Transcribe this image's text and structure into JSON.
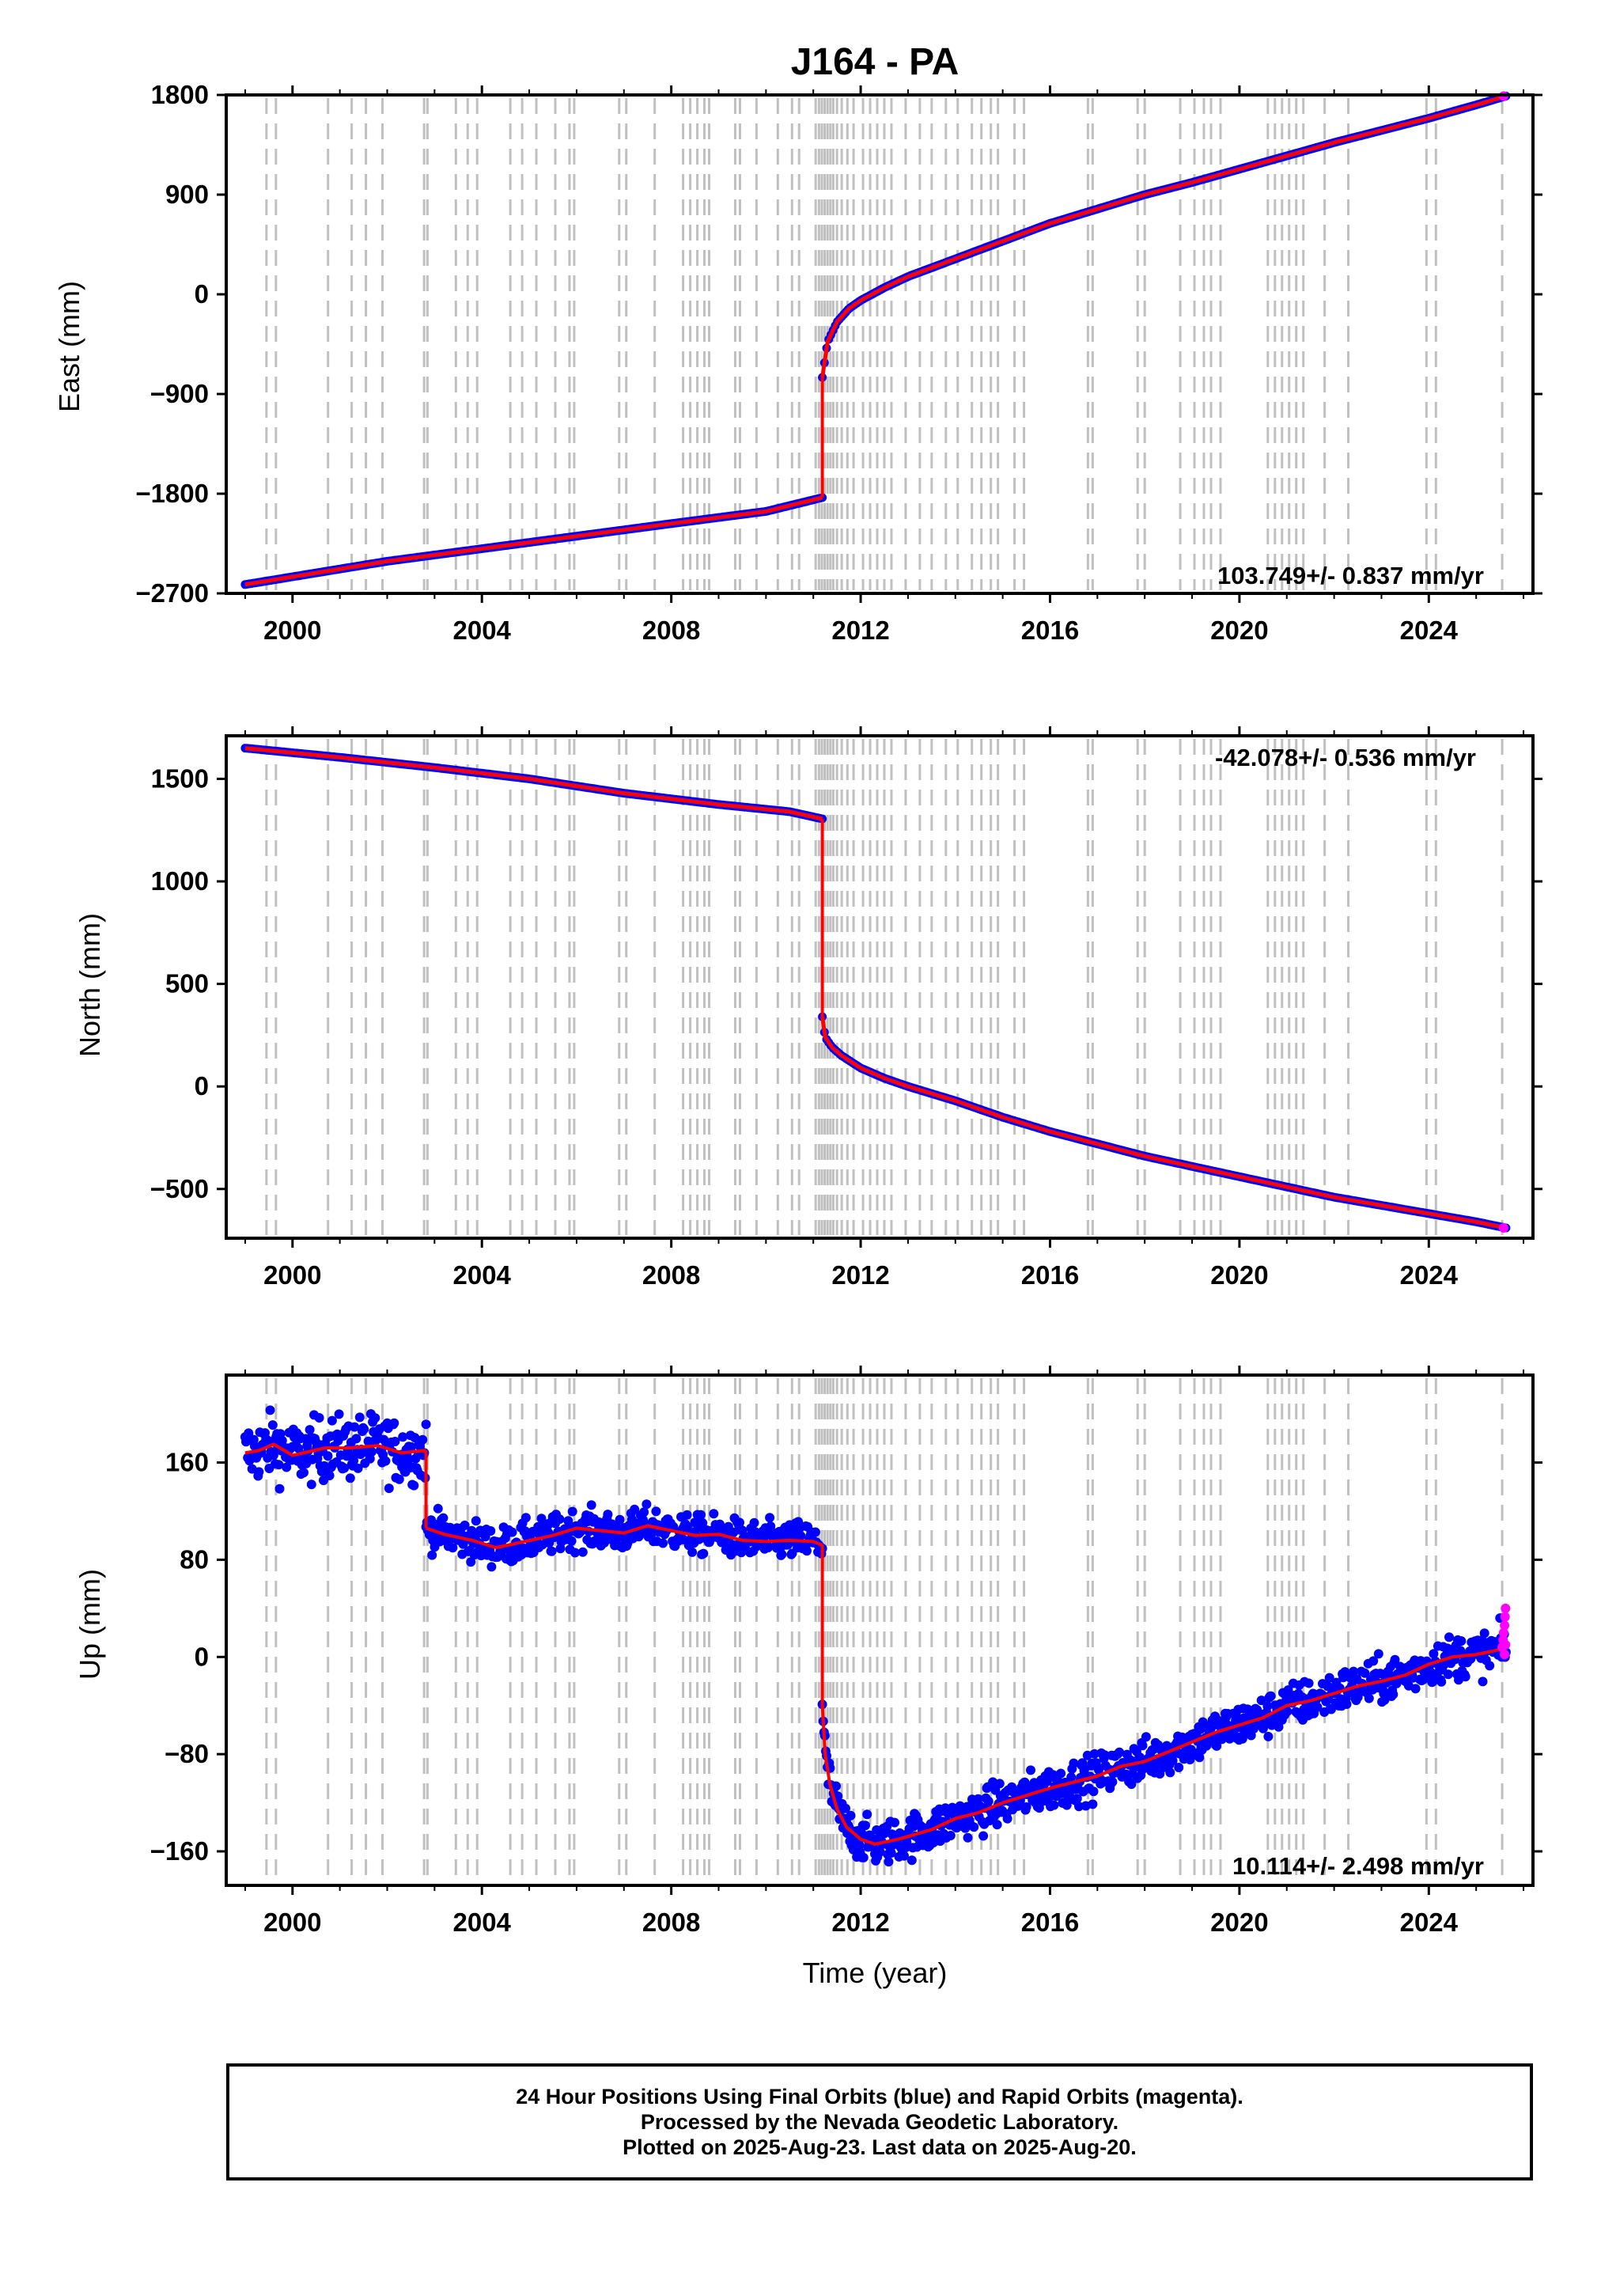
{
  "title": "J164 - PA",
  "time_axis": {
    "label": "Time (year)",
    "ticks": [
      2000,
      2004,
      2008,
      2012,
      2016,
      2020,
      2024
    ],
    "xlim": [
      1998.6,
      2026.2
    ]
  },
  "footer": {
    "line1": "24 Hour Positions Using Final Orbits (blue) and Rapid Orbits (magenta).",
    "line2": "Processed by the Nevada Geodetic Laboratory.",
    "line3": "Plotted on 2025-Aug-23. Last data on 2025-Aug-20."
  },
  "colors": {
    "final_orbits": "#0000ff",
    "rapid_orbits": "#ff00ff",
    "model": "#ff0000",
    "steps": "#c0c0c0",
    "frame": "#000000"
  },
  "step_dates": [
    1999.45,
    1999.65,
    2000.75,
    2001.25,
    2001.55,
    2001.9,
    2002.78,
    2002.85,
    2003.45,
    2003.7,
    2003.9,
    2004.6,
    2004.85,
    2005.15,
    2005.55,
    2005.85,
    2005.95,
    2006.9,
    2007.05,
    2007.65,
    2008.25,
    2008.4,
    2008.55,
    2008.7,
    2008.8,
    2009.35,
    2009.45,
    2009.8,
    2010.25,
    2010.55,
    2010.7,
    2011.05,
    2011.12,
    2011.18,
    2011.24,
    2011.3,
    2011.36,
    2011.42,
    2011.5,
    2011.6,
    2011.72,
    2011.85,
    2012.05,
    2012.2,
    2012.35,
    2012.5,
    2012.65,
    2012.95,
    2013.25,
    2013.5,
    2013.8,
    2014.05,
    2014.35,
    2014.55,
    2014.75,
    2014.9,
    2015.25,
    2015.45,
    2016.8,
    2016.9,
    2017.85,
    2018.0,
    2018.75,
    2019.05,
    2019.25,
    2019.4,
    2019.6,
    2020.6,
    2020.75,
    2020.9,
    2021.05,
    2021.2,
    2021.35,
    2021.8,
    2022.3,
    2023.95,
    2024.15,
    2025.55
  ],
  "chart_data": [
    {
      "type": "scatter",
      "component": "East",
      "ylabel": "East (mm)",
      "yticks": [
        1800,
        900,
        0,
        -900,
        -1800,
        -2700
      ],
      "ylim": [
        -2700,
        1800
      ],
      "velocity_label": "103.749+/- 0.837 mm/yr",
      "velocity_position": "bottom-right",
      "segments": [
        {
          "x": [
            1999.0,
            2002.0,
            2005.0,
            2008.0,
            2010.0,
            2011.19
          ],
          "y": [
            -2620,
            -2410,
            -2240,
            -2070,
            -1960,
            -1835
          ]
        },
        {
          "x": [
            2011.19,
            2011.3,
            2011.5,
            2011.75,
            2012.0,
            2012.5,
            2013.0,
            2014.0,
            2015.0,
            2016.0,
            2017.0,
            2018.0,
            2019.0,
            2020.0,
            2021.0,
            2022.0,
            2023.0,
            2024.0,
            2025.0,
            2025.63
          ],
          "y": [
            -750,
            -430,
            -250,
            -130,
            -55,
            60,
            160,
            320,
            480,
            640,
            770,
            900,
            1010,
            1130,
            1250,
            1370,
            1480,
            1590,
            1710,
            1790
          ]
        }
      ],
      "rapid_points": [
        [
          2025.58,
          1790
        ]
      ]
    },
    {
      "type": "scatter",
      "component": "North",
      "ylabel": "North (mm)",
      "yticks": [
        1500,
        1000,
        500,
        0,
        -500
      ],
      "ylim": [
        -740,
        1710
      ],
      "velocity_label": "-42.078+/- 0.536 mm/yr",
      "velocity_position": "top-right",
      "segments": [
        {
          "x": [
            1999.0,
            2001.0,
            2003.0,
            2005.0,
            2007.0,
            2009.0,
            2010.5,
            2011.19
          ],
          "y": [
            1650,
            1605,
            1555,
            1500,
            1430,
            1375,
            1340,
            1305
          ]
        },
        {
          "x": [
            2011.19,
            2011.25,
            2011.4,
            2011.6,
            2011.8,
            2012.0,
            2012.5,
            2013.0,
            2014.0,
            2015.0,
            2016.0,
            2017.0,
            2018.0,
            2019.0,
            2020.0,
            2021.0,
            2022.0,
            2023.0,
            2024.0,
            2025.0,
            2025.63
          ],
          "y": [
            340,
            240,
            190,
            150,
            120,
            90,
            40,
            0,
            -70,
            -150,
            -220,
            -280,
            -340,
            -390,
            -440,
            -490,
            -540,
            -580,
            -620,
            -660,
            -690
          ]
        }
      ],
      "rapid_points": [
        [
          2025.58,
          -690
        ]
      ]
    },
    {
      "type": "scatter",
      "component": "Up",
      "ylabel": "Up (mm)",
      "yticks": [
        160,
        80,
        0,
        -80,
        -160
      ],
      "ylim": [
        -188,
        232
      ],
      "velocity_label": "10.114+/- 2.498 mm/yr",
      "velocity_position": "bottom-right",
      "segments": [
        {
          "x": [
            1999.0,
            1999.3,
            1999.6,
            2000.0,
            2000.7,
            2001.2,
            2001.8,
            2002.3,
            2002.82
          ],
          "y": [
            168,
            170,
            175,
            166,
            172,
            172,
            174,
            168,
            170
          ],
          "scatter": 13
        },
        {
          "x": [
            2002.82,
            2003.2,
            2003.8,
            2004.3,
            2004.9,
            2005.5,
            2006.0,
            2006.5,
            2007.0,
            2007.5,
            2008.0,
            2008.5,
            2009.0,
            2009.5,
            2010.0,
            2010.5,
            2011.0,
            2011.19
          ],
          "y": [
            106,
            101,
            96,
            90,
            95,
            100,
            106,
            104,
            102,
            108,
            104,
            100,
            101,
            96,
            95,
            96,
            95,
            92
          ],
          "scatter": 8
        },
        {
          "x": [
            2011.19,
            2011.25,
            2011.35,
            2011.5,
            2011.7,
            2012.0,
            2012.3,
            2012.8,
            2013.5,
            2014.0,
            2014.5,
            2015.0,
            2015.5,
            2016.0,
            2016.5,
            2017.0,
            2017.5,
            2018.0,
            2018.5,
            2019.0,
            2019.5,
            2020.0,
            2020.5,
            2021.0,
            2021.5,
            2022.0,
            2022.5,
            2023.0,
            2023.5,
            2024.0,
            2024.5,
            2025.0,
            2025.5,
            2025.63
          ],
          "y": [
            -40,
            -80,
            -105,
            -125,
            -140,
            -150,
            -154,
            -150,
            -142,
            -133,
            -128,
            -120,
            -114,
            -108,
            -103,
            -98,
            -90,
            -86,
            -78,
            -70,
            -62,
            -56,
            -50,
            -40,
            -36,
            -30,
            -24,
            -20,
            -15,
            -6,
            0,
            2,
            6,
            10
          ],
          "scatter": 9
        }
      ],
      "rapid_points": [
        [
          2025.55,
          8
        ],
        [
          2025.57,
          14
        ],
        [
          2025.58,
          20
        ],
        [
          2025.6,
          26
        ],
        [
          2025.61,
          33
        ],
        [
          2025.62,
          40
        ],
        [
          2025.6,
          2
        ],
        [
          2025.62,
          10
        ]
      ]
    }
  ]
}
